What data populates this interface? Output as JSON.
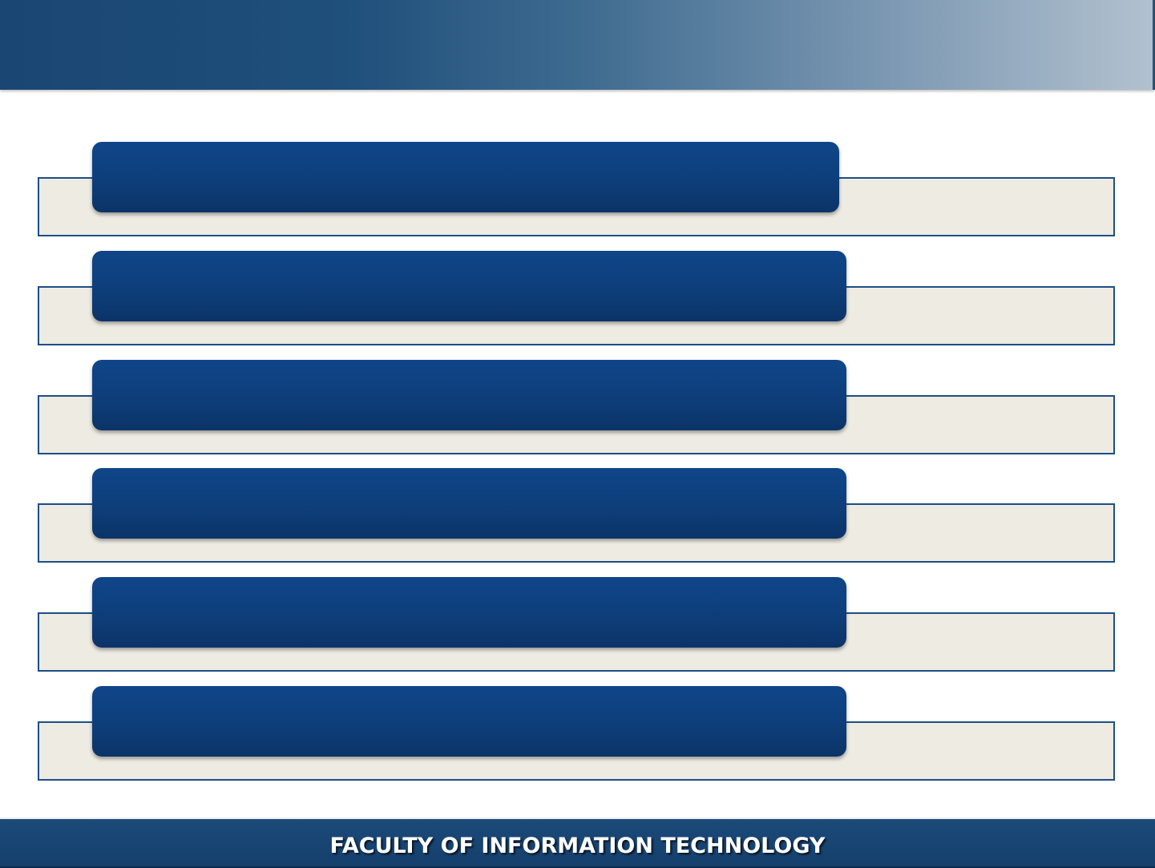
{
  "footer": {
    "title": "FACULTY OF INFORMATION TECHNOLOGY"
  },
  "rows": [
    {
      "tab_label": ""
    },
    {
      "tab_label": ""
    },
    {
      "tab_label": ""
    },
    {
      "tab_label": ""
    },
    {
      "tab_label": ""
    },
    {
      "tab_label": ""
    }
  ],
  "colors": {
    "header_start": "#1a4673",
    "header_end": "#b2c1cf",
    "tab_fill": "#0e3f7c",
    "row_fill": "#eeebe3",
    "row_border": "#1d4f86",
    "footer_fill": "#1b4a79"
  }
}
